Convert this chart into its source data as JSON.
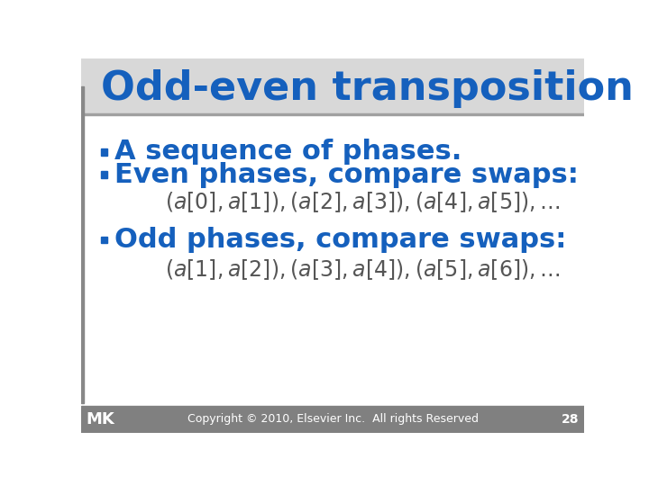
{
  "title": "Odd-even transposition sort",
  "title_color": "#1560BD",
  "title_fontsize": 32,
  "slide_bg": "#ffffff",
  "bullet_text_color": "#1560BD",
  "bullet_fontsize": 22,
  "bullets": [
    "A sequence of phases.",
    "Even phases, compare swaps:"
  ],
  "bullet3": "Odd phases, compare swaps:",
  "formula1": "$(a[0],a[1]),(a[2],a[3]),(a[4],a[5]),\\ldots$",
  "formula2": "$(a[1],a[2]),(a[3],a[4]),(a[5],a[6]),\\ldots$",
  "formula_color": "#555555",
  "formula_fontsize": 17,
  "footer_text": "Copyright © 2010, Elsevier Inc.  All rights Reserved",
  "footer_page": "28",
  "footer_bg": "#808080",
  "footer_color": "#ffffff",
  "left_bar_color": "#888888",
  "title_bg_color": "#d8d8d8",
  "square_bullet_color": "#1560BD"
}
